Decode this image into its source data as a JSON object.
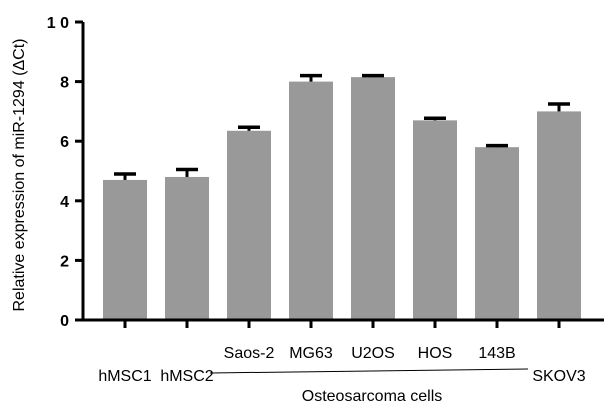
{
  "chart_data": {
    "type": "bar",
    "ylabel": "Relative expression of miR-1294 (ΔCt)",
    "ylim": [
      0,
      10
    ],
    "yticks": [
      "0",
      "2",
      "4",
      "6",
      "8",
      "1 0"
    ],
    "categories": [
      "hMSC1",
      "hMSC2",
      "Saos-2",
      "MG63",
      "U2OS",
      "HOS",
      "143B",
      "SKOV3"
    ],
    "values": [
      4.7,
      4.8,
      6.35,
      8.0,
      8.15,
      6.7,
      5.8,
      7.0
    ],
    "errors": [
      0.2,
      0.25,
      0.12,
      0.2,
      0.05,
      0.07,
      0.05,
      0.25
    ],
    "group_label": "Osteosarcoma cells",
    "group_members": [
      "Saos-2",
      "MG63",
      "U2OS",
      "HOS",
      "143B"
    ],
    "bar_color": "#999999",
    "grid": false
  }
}
